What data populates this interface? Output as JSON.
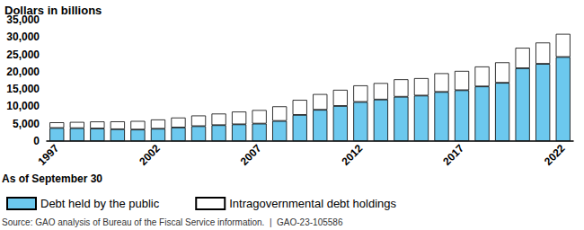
{
  "chart_data": {
    "type": "bar",
    "title": "Dollars in billions",
    "xlabel": "As of September 30",
    "source": "Source: GAO analysis of Bureau of the Fiscal Service information.  |  GAO-23-105586",
    "categories": [
      "1997",
      null,
      null,
      null,
      null,
      "2002",
      null,
      null,
      null,
      null,
      "2007",
      null,
      null,
      null,
      null,
      "2012",
      null,
      null,
      null,
      null,
      "2017",
      null,
      null,
      null,
      null,
      "2022"
    ],
    "series": [
      {
        "name": "Debt held by the public",
        "color": "#6cc8ee",
        "values": [
          3772,
          3721,
          3632,
          3410,
          3320,
          3553,
          3913,
          4296,
          4592,
          4829,
          5035,
          5803,
          7545,
          9019,
          10128,
          11281,
          11983,
          12780,
          13124,
          14173,
          14673,
          15761,
          16809,
          21017,
          22282,
          24253
        ]
      },
      {
        "name": "Intragovernmental debt holdings",
        "color": "#ffffff",
        "values": [
          1641,
          1805,
          2024,
          2269,
          2487,
          2675,
          2870,
          3084,
          3341,
          3678,
          3916,
          4221,
          4345,
          4542,
          4662,
          4785,
          4755,
          5044,
          5027,
          5400,
          5573,
          5755,
          5914,
          5903,
          6146,
          6678
        ]
      }
    ],
    "stacked": true,
    "ylim": [
      0,
      35000
    ],
    "yticks": [
      0,
      {
        "value": 5000,
        "label": "5,000"
      },
      {
        "value": 10000,
        "label": "10,000"
      },
      {
        "value": 15000,
        "label": "15,000"
      },
      {
        "value": 20000,
        "label": "20,000"
      },
      {
        "value": 25000,
        "label": "25,000"
      },
      {
        "value": 30000,
        "label": "30,000"
      },
      {
        "value": 35000,
        "label": "35,000"
      }
    ],
    "grid": false,
    "legend": "bottom-left"
  }
}
